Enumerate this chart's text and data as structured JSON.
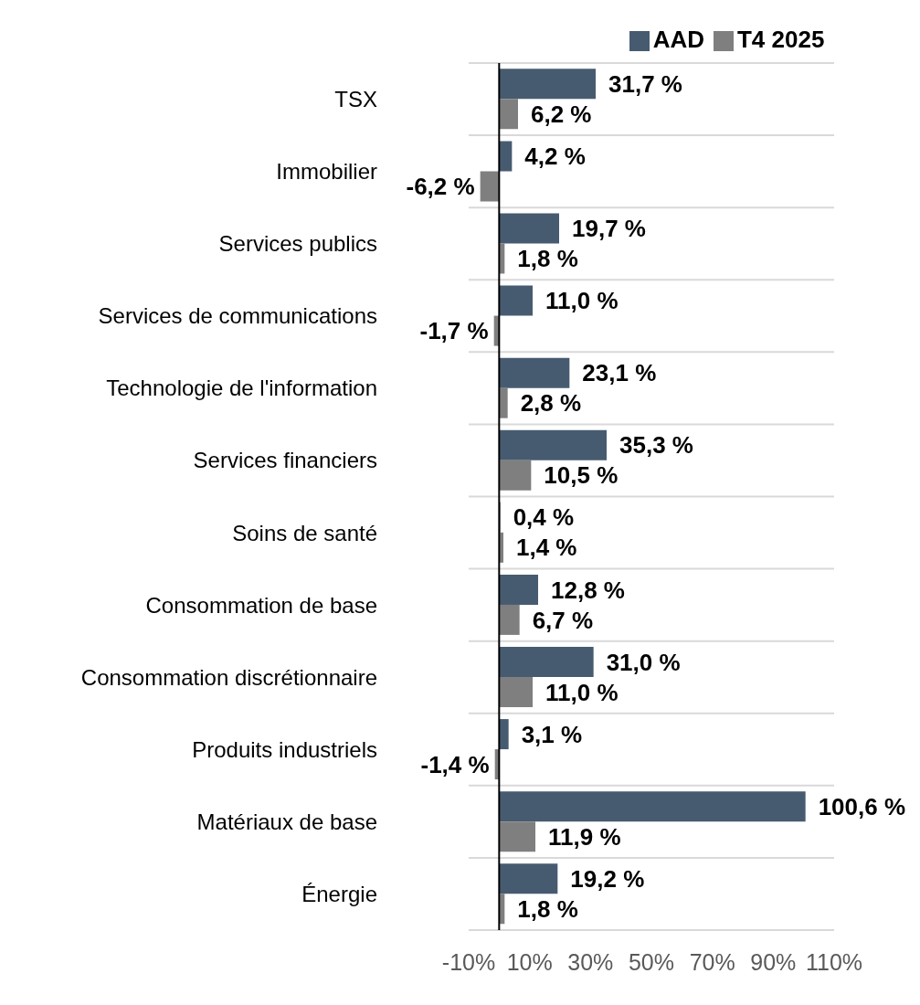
{
  "chart_data": {
    "type": "bar",
    "orientation": "horizontal",
    "categories": [
      "TSX",
      "Immobilier",
      "Services publics",
      "Services de communications",
      "Technologie de l'information",
      "Services financiers",
      "Soins de santé",
      "Consommation de base",
      "Consommation discrétionnaire",
      "Produits industriels",
      "Matériaux de base",
      "Énergie"
    ],
    "series": [
      {
        "name": "AAD",
        "color": "#475b70",
        "values": [
          31.7,
          4.2,
          19.7,
          11.0,
          23.1,
          35.3,
          0.4,
          12.8,
          31.0,
          3.1,
          100.6,
          19.2
        ],
        "value_labels": [
          "31,7 %",
          "4,2 %",
          "19,7 %",
          "11,0 %",
          "23,1 %",
          "35,3 %",
          "0,4 %",
          "12,8 %",
          "31,0 %",
          "3,1 %",
          "100,6 %",
          "19,2 %"
        ]
      },
      {
        "name": "T4 2025",
        "color": "#7f7f7f",
        "values": [
          6.2,
          -6.2,
          1.8,
          -1.7,
          2.8,
          10.5,
          1.4,
          6.7,
          11.0,
          -1.4,
          11.9,
          1.8
        ],
        "value_labels": [
          "6,2 %",
          "-6,2 %",
          "1,8 %",
          "-1,7 %",
          "2,8 %",
          "10,5 %",
          "1,4 %",
          "6,7 %",
          "11,0 %",
          "-1,4 %",
          "11,9 %",
          "1,8 %"
        ]
      }
    ],
    "xlim": [
      -10,
      110
    ],
    "xticks": [
      {
        "value": -10,
        "label": "-10%"
      },
      {
        "value": 10,
        "label": "10%"
      },
      {
        "value": 30,
        "label": "30%"
      },
      {
        "value": 50,
        "label": "50%"
      },
      {
        "value": 70,
        "label": "70%"
      },
      {
        "value": 90,
        "label": "90%"
      },
      {
        "value": 110,
        "label": "110%"
      }
    ],
    "grid": "y",
    "legend": "top"
  }
}
